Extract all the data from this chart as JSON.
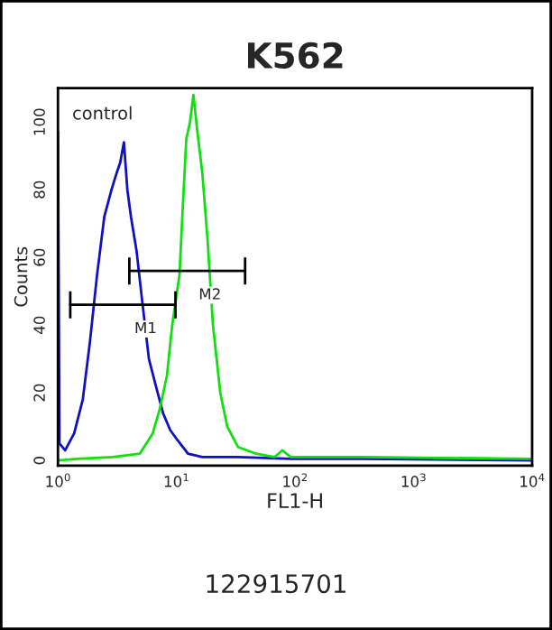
{
  "chart_data": {
    "type": "line",
    "title": "K562",
    "xlabel": "FL1-H",
    "ylabel": "Counts",
    "log": "x",
    "xlim": [
      1,
      10000
    ],
    "ylim": [
      -1.5,
      110
    ],
    "xticks": [
      {
        "value": 1,
        "label": "10$^{0}$"
      },
      {
        "value": 10,
        "label": "10$^{1}$"
      },
      {
        "value": 100,
        "label": "10$^{2}$"
      },
      {
        "value": 1000,
        "label": "10$^{3}$"
      },
      {
        "value": 10000,
        "label": "10$^{4}$"
      }
    ],
    "yticks": [
      0,
      20,
      40,
      60,
      80,
      100
    ],
    "series": [
      {
        "color": "#1010c0",
        "x": [
          1.0,
          1.03,
          1.15,
          1.37,
          1.62,
          1.86,
          2.14,
          2.46,
          2.83,
          3.13,
          3.35,
          3.6,
          3.85,
          4.13,
          4.6,
          5.1,
          5.85,
          6.7,
          7.7,
          8.85,
          10.2,
          12.5,
          16.5,
          33,
          93,
          370,
          10000
        ],
        "values": [
          97,
          5,
          3,
          8,
          18,
          35,
          55,
          72,
          80,
          85,
          88,
          94,
          80,
          72,
          62,
          48,
          30,
          22,
          14,
          9,
          6,
          2,
          1,
          1,
          0.5,
          0.5,
          0
        ]
      },
      {
        "color": "#10e010",
        "x": [
          1.0,
          1.46,
          2.9,
          4.9,
          6.3,
          7.2,
          8.3,
          9.2,
          10.6,
          11.3,
          12.1,
          13,
          13.9,
          14.9,
          16.5,
          18.3,
          20.3,
          23.4,
          26.8,
          33,
          47,
          67,
          78,
          92,
          370,
          10000
        ],
        "values": [
          0,
          0.5,
          1,
          2,
          8,
          15,
          25,
          40,
          55,
          75,
          95,
          100,
          108,
          98,
          85,
          65,
          40,
          20,
          10,
          4,
          2,
          1,
          3,
          1,
          1,
          0.5
        ]
      },
      {
        "name": "M1",
        "color": "#000000",
        "x": [
          1.27,
          9.8
        ],
        "values": [
          46,
          46
        ]
      },
      {
        "name": "M2",
        "color": "#000000",
        "x": [
          4.0,
          37.9
        ],
        "values": [
          56,
          56
        ]
      }
    ],
    "annotations": [
      "control",
      "122915701"
    ]
  }
}
